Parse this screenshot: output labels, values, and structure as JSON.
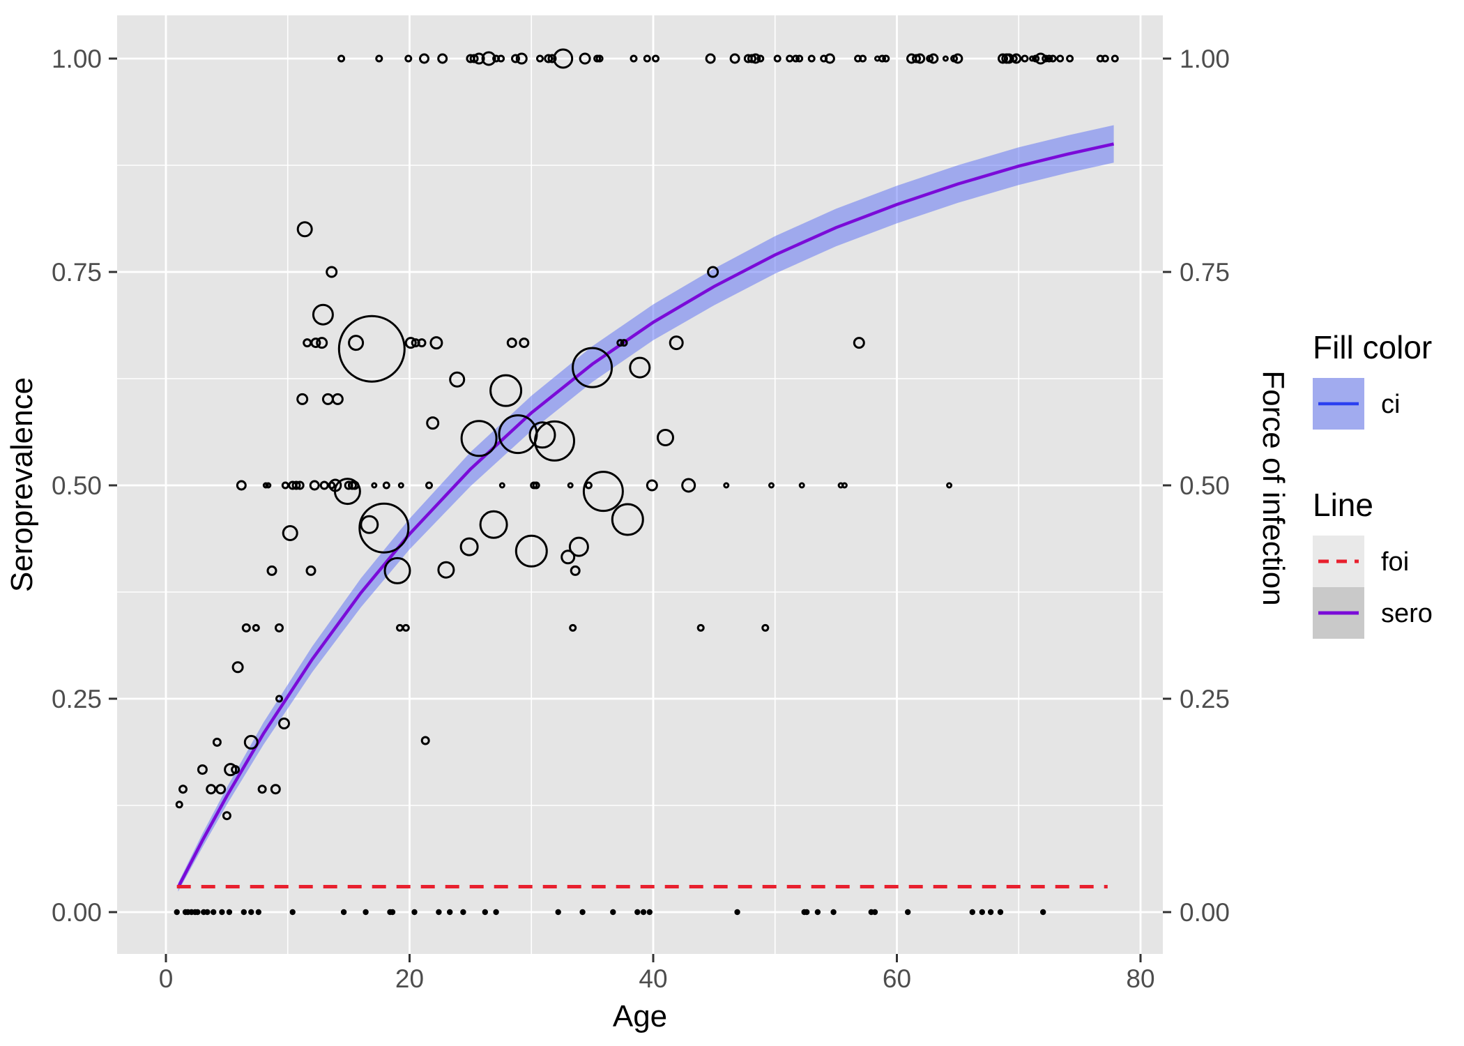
{
  "chart_data": {
    "type": "scatter",
    "title": "",
    "xlabel": "Age",
    "ylabel_left": "Seroprevalence",
    "ylabel_right": "Force of infection",
    "x_ticks": [
      0,
      20,
      40,
      60,
      80
    ],
    "x_tick_labels": [
      "0",
      "20",
      "40",
      "60",
      "80"
    ],
    "x_minor_ticks": [
      10,
      30,
      50,
      70
    ],
    "y_ticks": [
      0,
      0.25,
      0.5,
      0.75,
      1
    ],
    "y_tick_labels": [
      "0.00",
      "0.25",
      "0.50",
      "0.75",
      "1.00"
    ],
    "y_minor_ticks": [
      0.125,
      0.375,
      0.625,
      0.875
    ],
    "xlim": [
      -4,
      81.8
    ],
    "ylim": [
      -0.049,
      1.051
    ],
    "grid": "on",
    "legend_position": "right",
    "legend": {
      "fill_title": "Fill color",
      "ci_label": "ci",
      "line_title": "Line",
      "foi_label": "foi",
      "sero_label": "sero"
    },
    "foi_line": {
      "value": 0.0298,
      "age_start": 0.9,
      "age_end": 77.3
    },
    "sero_curve": {
      "lambda": 0.0293,
      "ages": [
        1,
        3,
        5,
        8,
        12,
        16,
        20,
        25,
        30,
        35,
        40,
        45,
        50,
        55,
        60,
        65,
        70,
        74,
        77.8
      ],
      "values": [
        0.029,
        0.084,
        0.136,
        0.209,
        0.296,
        0.374,
        0.443,
        0.519,
        0.585,
        0.642,
        0.691,
        0.733,
        0.77,
        0.802,
        0.829,
        0.853,
        0.874,
        0.888,
        0.9
      ],
      "ci_upper": [
        0.034,
        0.092,
        0.146,
        0.222,
        0.311,
        0.391,
        0.461,
        0.539,
        0.605,
        0.663,
        0.712,
        0.754,
        0.792,
        0.824,
        0.851,
        0.875,
        0.896,
        0.91,
        0.922
      ],
      "ci_lower": [
        0.024,
        0.076,
        0.126,
        0.196,
        0.281,
        0.357,
        0.425,
        0.499,
        0.564,
        0.621,
        0.67,
        0.711,
        0.748,
        0.78,
        0.807,
        0.831,
        0.852,
        0.866,
        0.878
      ]
    },
    "bubbles": [
      [
        14.4,
        1,
        4
      ],
      [
        17.5,
        1,
        4
      ],
      [
        19.9,
        1,
        4
      ],
      [
        21.2,
        1,
        6
      ],
      [
        22.7,
        1,
        6
      ],
      [
        25.0,
        1,
        5
      ],
      [
        25.3,
        1,
        5
      ],
      [
        25.7,
        1,
        7
      ],
      [
        26.5,
        1,
        9
      ],
      [
        27.1,
        1,
        4
      ],
      [
        27.5,
        1,
        4
      ],
      [
        28.7,
        1,
        5
      ],
      [
        29.2,
        1,
        7
      ],
      [
        30.7,
        1,
        4
      ],
      [
        31.4,
        1,
        5
      ],
      [
        31.7,
        1,
        5
      ],
      [
        32.6,
        1,
        13
      ],
      [
        34.4,
        1,
        7
      ],
      [
        35.4,
        1,
        4
      ],
      [
        35.6,
        1,
        4
      ],
      [
        38.4,
        1,
        4
      ],
      [
        39.5,
        1,
        4
      ],
      [
        40.2,
        1,
        4
      ],
      [
        44.7,
        1,
        6
      ],
      [
        46.7,
        1,
        6
      ],
      [
        47.8,
        1,
        5
      ],
      [
        48.1,
        1,
        5
      ],
      [
        48.4,
        1,
        6
      ],
      [
        48.8,
        1,
        4
      ],
      [
        50.2,
        1,
        4
      ],
      [
        51.2,
        1,
        4
      ],
      [
        51.7,
        1,
        4
      ],
      [
        52.0,
        1,
        4
      ],
      [
        53.0,
        1,
        4
      ],
      [
        54.0,
        1,
        4
      ],
      [
        54.5,
        1,
        6
      ],
      [
        56.8,
        1,
        4
      ],
      [
        57.2,
        1,
        4
      ],
      [
        58.4,
        1,
        3
      ],
      [
        58.8,
        1,
        4
      ],
      [
        59.1,
        1,
        4
      ],
      [
        61.2,
        1,
        6
      ],
      [
        61.6,
        1,
        5
      ],
      [
        61.9,
        1,
        6
      ],
      [
        62.7,
        1,
        4
      ],
      [
        63.0,
        1,
        6
      ],
      [
        64.0,
        1,
        3
      ],
      [
        64.7,
        1,
        4
      ],
      [
        65.0,
        1,
        6
      ],
      [
        68.7,
        1,
        6
      ],
      [
        69.0,
        1,
        6
      ],
      [
        69.2,
        1,
        6
      ],
      [
        69.6,
        1,
        4
      ],
      [
        69.8,
        1,
        6
      ],
      [
        70.5,
        1,
        4
      ],
      [
        71.1,
        1,
        3
      ],
      [
        71.4,
        1,
        4
      ],
      [
        71.8,
        1,
        7
      ],
      [
        72.2,
        1,
        4
      ],
      [
        72.5,
        1,
        4
      ],
      [
        72.8,
        1,
        4
      ],
      [
        73.4,
        1,
        4
      ],
      [
        74.2,
        1,
        4
      ],
      [
        76.7,
        1,
        4
      ],
      [
        77.1,
        1,
        4
      ],
      [
        77.9,
        1,
        4
      ],
      [
        11.4,
        0.8,
        10
      ],
      [
        13.6,
        0.75,
        7
      ],
      [
        44.9,
        0.75,
        7
      ],
      [
        12.9,
        0.7,
        14
      ],
      [
        11.6,
        0.667,
        5
      ],
      [
        12.3,
        0.667,
        6
      ],
      [
        12.8,
        0.667,
        7
      ],
      [
        15.6,
        0.667,
        10
      ],
      [
        16.9,
        0.66,
        47
      ],
      [
        20.1,
        0.667,
        7
      ],
      [
        20.5,
        0.667,
        5
      ],
      [
        21.0,
        0.667,
        5
      ],
      [
        22.2,
        0.667,
        8
      ],
      [
        28.4,
        0.667,
        6
      ],
      [
        29.4,
        0.667,
        6
      ],
      [
        37.3,
        0.667,
        4
      ],
      [
        37.6,
        0.667,
        4
      ],
      [
        41.9,
        0.667,
        9
      ],
      [
        56.9,
        0.667,
        7
      ],
      [
        35.0,
        0.638,
        28
      ],
      [
        38.9,
        0.638,
        14
      ],
      [
        23.9,
        0.624,
        10
      ],
      [
        27.9,
        0.611,
        22
      ],
      [
        11.2,
        0.601,
        7
      ],
      [
        13.3,
        0.601,
        7
      ],
      [
        14.1,
        0.601,
        7
      ],
      [
        21.9,
        0.573,
        8
      ],
      [
        25.7,
        0.555,
        25
      ],
      [
        28.9,
        0.56,
        27
      ],
      [
        30.9,
        0.559,
        18
      ],
      [
        31.9,
        0.552,
        28
      ],
      [
        41.0,
        0.556,
        11
      ],
      [
        6.2,
        0.5,
        6
      ],
      [
        8.2,
        0.5,
        3
      ],
      [
        8.4,
        0.5,
        3
      ],
      [
        9.8,
        0.5,
        4
      ],
      [
        10.4,
        0.5,
        5
      ],
      [
        10.7,
        0.5,
        5
      ],
      [
        11.0,
        0.5,
        5
      ],
      [
        12.2,
        0.5,
        6
      ],
      [
        13.0,
        0.5,
        5
      ],
      [
        13.6,
        0.5,
        4
      ],
      [
        13.9,
        0.5,
        8
      ],
      [
        14.9,
        0.493,
        18
      ],
      [
        15.0,
        0.5,
        5
      ],
      [
        15.3,
        0.5,
        5
      ],
      [
        15.5,
        0.5,
        5
      ],
      [
        17.1,
        0.5,
        3
      ],
      [
        18.1,
        0.5,
        4
      ],
      [
        19.3,
        0.5,
        3
      ],
      [
        21.6,
        0.5,
        4
      ],
      [
        27.6,
        0.5,
        3
      ],
      [
        30.2,
        0.5,
        4
      ],
      [
        30.4,
        0.5,
        4
      ],
      [
        33.2,
        0.5,
        3
      ],
      [
        34.7,
        0.5,
        4
      ],
      [
        35.9,
        0.493,
        28
      ],
      [
        39.9,
        0.5,
        7
      ],
      [
        42.9,
        0.5,
        9
      ],
      [
        46.0,
        0.5,
        3
      ],
      [
        49.7,
        0.5,
        3
      ],
      [
        52.2,
        0.5,
        3
      ],
      [
        55.4,
        0.5,
        3
      ],
      [
        55.7,
        0.5,
        3
      ],
      [
        64.3,
        0.5,
        3
      ],
      [
        17.9,
        0.45,
        35
      ],
      [
        16.7,
        0.454,
        12
      ],
      [
        10.2,
        0.444,
        10
      ],
      [
        37.9,
        0.46,
        22
      ],
      [
        26.9,
        0.454,
        19
      ],
      [
        24.9,
        0.428,
        12
      ],
      [
        30.0,
        0.423,
        22
      ],
      [
        33.9,
        0.428,
        13
      ],
      [
        33.0,
        0.416,
        9
      ],
      [
        19.0,
        0.4,
        18
      ],
      [
        8.7,
        0.4,
        6
      ],
      [
        11.9,
        0.4,
        6
      ],
      [
        23.0,
        0.401,
        11
      ],
      [
        33.6,
        0.4,
        6
      ],
      [
        6.6,
        0.333,
        5
      ],
      [
        7.4,
        0.333,
        4
      ],
      [
        9.3,
        0.333,
        5
      ],
      [
        19.2,
        0.333,
        4
      ],
      [
        19.7,
        0.333,
        4
      ],
      [
        33.4,
        0.333,
        4
      ],
      [
        43.9,
        0.333,
        4
      ],
      [
        49.2,
        0.333,
        4
      ],
      [
        5.9,
        0.287,
        7
      ],
      [
        9.3,
        0.25,
        4
      ],
      [
        9.7,
        0.221,
        7
      ],
      [
        4.2,
        0.199,
        5
      ],
      [
        7.0,
        0.199,
        9
      ],
      [
        21.3,
        0.201,
        5
      ],
      [
        3.0,
        0.167,
        6
      ],
      [
        5.3,
        0.167,
        8
      ],
      [
        5.7,
        0.167,
        5
      ],
      [
        1.4,
        0.144,
        5
      ],
      [
        3.7,
        0.144,
        6
      ],
      [
        4.5,
        0.144,
        6
      ],
      [
        7.9,
        0.144,
        5
      ],
      [
        9.0,
        0.144,
        6
      ],
      [
        1.1,
        0.126,
        4
      ],
      [
        5.0,
        0.113,
        5
      ]
    ],
    "zero_dots_ages": [
      0.9,
      1.6,
      1.8,
      2.1,
      2.4,
      2.6,
      3.1,
      3.4,
      3.9,
      4.6,
      5.2,
      6.4,
      7.0,
      7.6,
      10.4,
      14.6,
      16.4,
      18.4,
      18.6,
      20.4,
      22.4,
      23.3,
      24.4,
      26.2,
      27.1,
      32.2,
      34.2,
      36.7,
      38.7,
      39.2,
      39.7,
      46.9,
      52.4,
      52.6,
      53.5,
      54.8,
      57.9,
      58.2,
      60.9,
      66.2,
      67.0,
      67.7,
      68.5,
      72.0
    ],
    "colors": {
      "panel_bg": "#E5E5E5",
      "grid": "#FFFFFF",
      "tick_text": "#4D4D4D",
      "axis_title_text": "#000000",
      "ribbon": "rgba(90,110,245,0.5)",
      "ribbon_legend": "#A1ABEF",
      "sero_line": "#7A0BD8",
      "ci_legend_line": "#2B3FF0",
      "foi_line": "#E8202E",
      "bubble_stroke": "#000000",
      "dot_fill": "#000000",
      "legend_key_foi_bg": "#E9E9E9",
      "legend_key_sero_bg": "#C9C9C9"
    }
  }
}
